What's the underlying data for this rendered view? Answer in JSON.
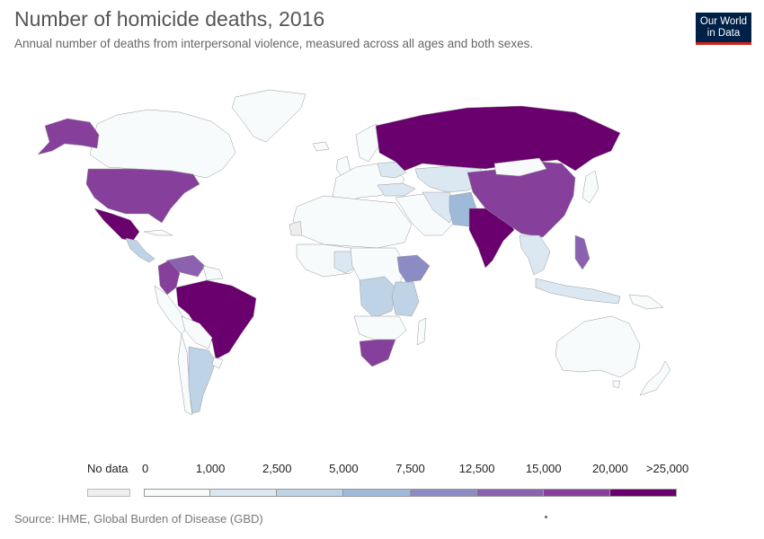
{
  "title": "Number of homicide deaths, 2016",
  "subtitle": "Annual number of deaths from interpersonal violence, measured across all ages and both sexes.",
  "logo": {
    "line1": "Our World",
    "line2": "in Data",
    "background": "#002147",
    "accent": "#ce261e"
  },
  "legend": {
    "no_data_label": "No data",
    "no_data_color": "#eeeeee",
    "ticks": [
      "0",
      "1,000",
      "2,500",
      "5,000",
      "7,500",
      "12,500",
      "15,000",
      "20,000",
      ">25,000"
    ],
    "bins": [
      {
        "from": "0",
        "to": "1,000",
        "color": "#f7fbfc"
      },
      {
        "from": "1,000",
        "to": "2,500",
        "color": "#dce8f1"
      },
      {
        "from": "2,500",
        "to": "5,000",
        "color": "#bfd3e6"
      },
      {
        "from": "5,000",
        "to": "7,500",
        "color": "#9ebad9"
      },
      {
        "from": "7,500",
        "to": "12,500",
        "color": "#8c8cc4"
      },
      {
        "from": "12,500",
        "to": "15,000",
        "color": "#8c62b0"
      },
      {
        "from": "15,000",
        "to": "20,000",
        "color": "#86409c"
      },
      {
        "from": "20,000",
        "to": ">25,000",
        "color": "#6a006d"
      }
    ]
  },
  "regions": [
    {
      "name": "Russia",
      "bin": 7
    },
    {
      "name": "India",
      "bin": 7
    },
    {
      "name": "Brazil",
      "bin": 7
    },
    {
      "name": "Mexico",
      "bin": 7
    },
    {
      "name": "United States",
      "bin": 6
    },
    {
      "name": "China",
      "bin": 6
    },
    {
      "name": "Venezuela",
      "bin": 5
    },
    {
      "name": "Colombia",
      "bin": 6
    },
    {
      "name": "South Africa",
      "bin": 6
    },
    {
      "name": "Philippines",
      "bin": 5
    },
    {
      "name": "Pakistan",
      "bin": 4
    },
    {
      "name": "Ethiopia",
      "bin": 4
    },
    {
      "name": "Argentina",
      "bin": 2
    },
    {
      "name": "Canada",
      "bin": 0
    },
    {
      "name": "Australia",
      "bin": 0
    }
  ],
  "source": "Source: IHME, Global Burden of Disease (GBD)"
}
